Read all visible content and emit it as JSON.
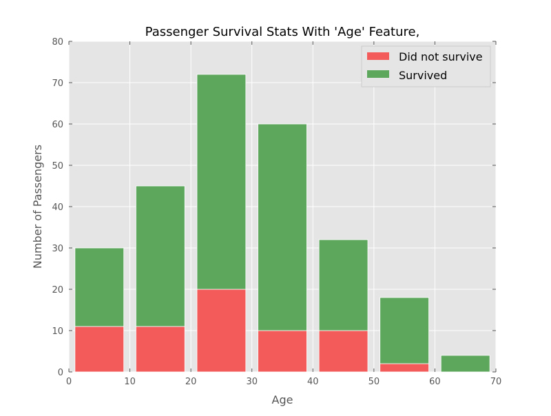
{
  "chart_data": {
    "type": "bar",
    "title": "Passenger Survival Stats With 'Age' Feature,",
    "xlabel": "Age",
    "ylabel": "Number of Passengers",
    "xlim": [
      0,
      70
    ],
    "ylim": [
      0,
      80
    ],
    "xticks": [
      "0",
      "10",
      "20",
      "30",
      "40",
      "50",
      "60",
      "70"
    ],
    "yticks": [
      "0",
      "10",
      "20",
      "30",
      "40",
      "50",
      "60",
      "70",
      "80"
    ],
    "grid": true,
    "legend_position": "top-right",
    "stacked": true,
    "bins": [
      {
        "x0": 0,
        "x1": 10
      },
      {
        "x0": 10,
        "x1": 20
      },
      {
        "x0": 20,
        "x1": 30
      },
      {
        "x0": 30,
        "x1": 40
      },
      {
        "x0": 40,
        "x1": 50
      },
      {
        "x0": 50,
        "x1": 60
      },
      {
        "x0": 60,
        "x1": 70
      }
    ],
    "series": [
      {
        "name": "Did not survive",
        "color": "#f35b5b",
        "values": [
          11,
          11,
          20,
          10,
          10,
          2,
          0
        ]
      },
      {
        "name": "Survived",
        "color": "#5ca75c",
        "values": [
          19,
          34,
          52,
          50,
          22,
          16,
          4
        ]
      }
    ]
  },
  "colors": {
    "plot_background": "#e5e5e5",
    "grid": "#ffffff",
    "axis_text": "#555555",
    "tick": "#555555"
  }
}
